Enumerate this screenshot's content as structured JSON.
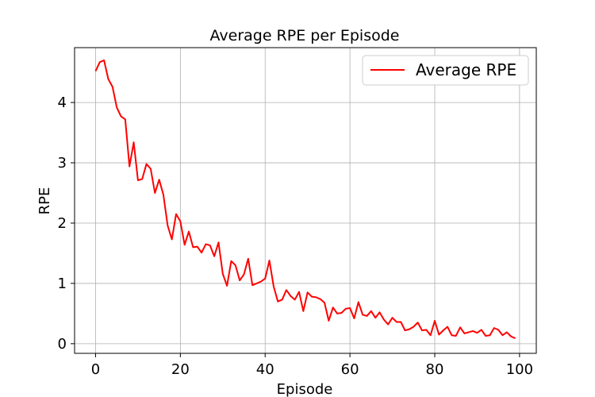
{
  "chart_data": {
    "type": "line",
    "title": "Average RPE per Episode",
    "xlabel": "Episode",
    "ylabel": "RPE",
    "xlim": [
      -4.95,
      103.95
    ],
    "ylim": [
      -0.16,
      4.91
    ],
    "xticks": [
      0,
      20,
      40,
      60,
      80,
      100
    ],
    "yticks": [
      0,
      1,
      2,
      3,
      4
    ],
    "grid": true,
    "legend_position": "top-right",
    "series": [
      {
        "name": "Average RPE",
        "color": "#ff0000",
        "x": [
          0,
          1,
          2,
          3,
          4,
          5,
          6,
          7,
          8,
          9,
          10,
          11,
          12,
          13,
          14,
          15,
          16,
          17,
          18,
          19,
          20,
          21,
          22,
          23,
          24,
          25,
          26,
          27,
          28,
          29,
          30,
          31,
          32,
          33,
          34,
          35,
          36,
          37,
          38,
          39,
          40,
          41,
          42,
          43,
          44,
          45,
          46,
          47,
          48,
          49,
          50,
          51,
          52,
          53,
          54,
          55,
          56,
          57,
          58,
          59,
          60,
          61,
          62,
          63,
          64,
          65,
          66,
          67,
          68,
          69,
          70,
          71,
          72,
          73,
          74,
          75,
          76,
          77,
          78,
          79,
          80,
          81,
          82,
          83,
          84,
          85,
          86,
          87,
          88,
          89,
          90,
          91,
          92,
          93,
          94,
          95,
          96,
          97,
          98,
          99
        ],
        "y": [
          4.52,
          4.67,
          4.7,
          4.39,
          4.26,
          3.92,
          3.77,
          3.72,
          2.94,
          3.34,
          2.71,
          2.73,
          2.98,
          2.9,
          2.5,
          2.72,
          2.47,
          1.96,
          1.73,
          2.15,
          2.03,
          1.64,
          1.86,
          1.6,
          1.61,
          1.51,
          1.65,
          1.63,
          1.45,
          1.68,
          1.16,
          0.96,
          1.37,
          1.3,
          1.05,
          1.15,
          1.41,
          0.97,
          1.0,
          1.03,
          1.08,
          1.38,
          0.95,
          0.7,
          0.73,
          0.89,
          0.79,
          0.73,
          0.86,
          0.54,
          0.85,
          0.78,
          0.77,
          0.74,
          0.68,
          0.38,
          0.6,
          0.5,
          0.51,
          0.58,
          0.59,
          0.42,
          0.69,
          0.48,
          0.46,
          0.54,
          0.43,
          0.52,
          0.4,
          0.32,
          0.43,
          0.36,
          0.36,
          0.22,
          0.24,
          0.28,
          0.35,
          0.22,
          0.23,
          0.14,
          0.38,
          0.15,
          0.22,
          0.28,
          0.14,
          0.13,
          0.27,
          0.17,
          0.19,
          0.21,
          0.18,
          0.23,
          0.13,
          0.14,
          0.26,
          0.23,
          0.14,
          0.19,
          0.12,
          0.09
        ]
      }
    ]
  }
}
